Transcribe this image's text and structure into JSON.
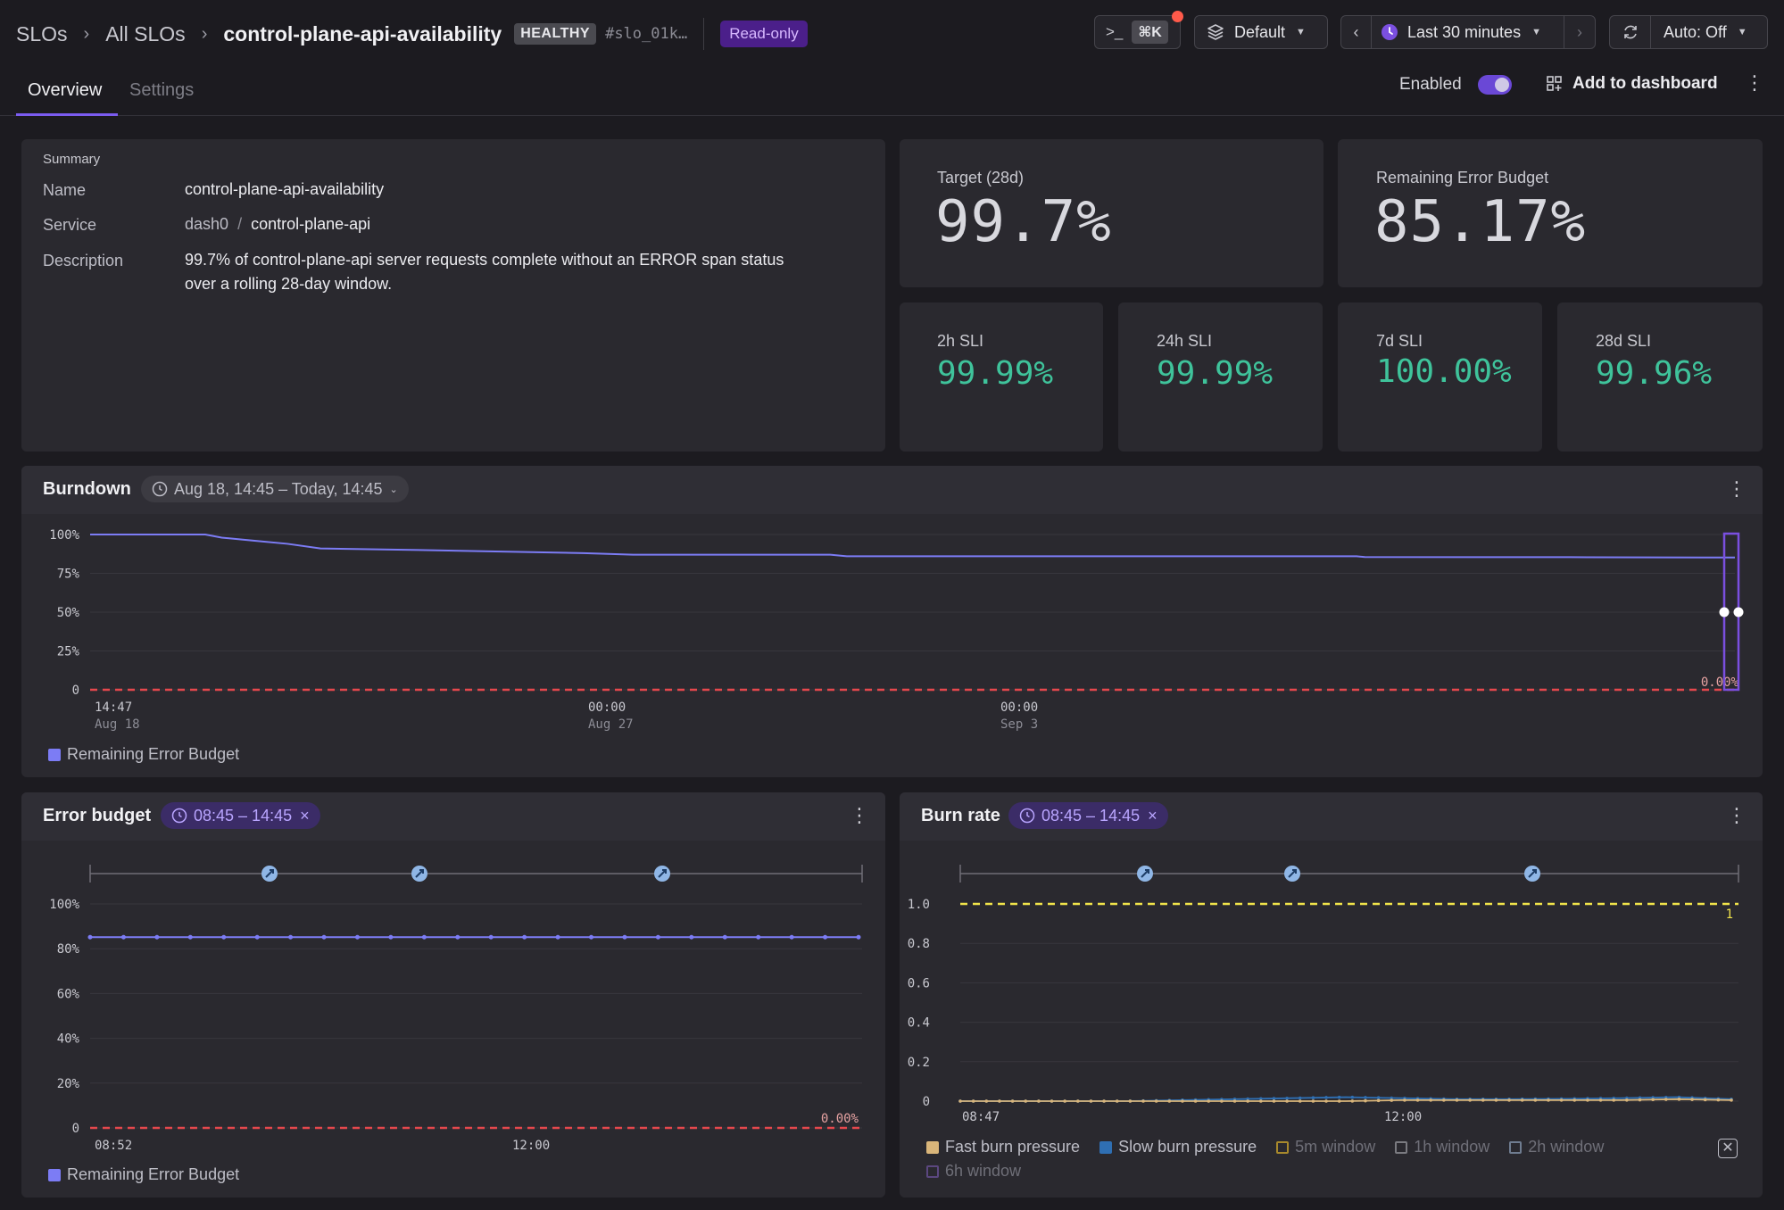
{
  "header": {
    "breadcrumb": [
      "SLOs",
      "All SLOs",
      "control-plane-api-availability"
    ],
    "status_badge": "HEALTHY",
    "slo_id": "#slo_01k…",
    "readonly": "Read-only",
    "command_key": "⌘K",
    "dataset": "Default",
    "time_range": "Last 30 minutes",
    "refresh": "Auto: Off"
  },
  "tabs": [
    "Overview",
    "Settings"
  ],
  "toolbar": {
    "enabled_label": "Enabled",
    "enabled": true,
    "add_dashboard": "Add to dashboard"
  },
  "summary": {
    "heading": "Summary",
    "name_label": "Name",
    "name": "control-plane-api-availability",
    "service_label": "Service",
    "service_ns": "dash0",
    "service_sep": "/",
    "service": "control-plane-api",
    "description_label": "Description",
    "description_line1": "99.7% of control-plane-api server requests complete without an ERROR span status",
    "description_line2": "over a rolling 28-day window."
  },
  "stats": {
    "target_label": "Target (28d)",
    "target": "99.7%",
    "budget_label": "Remaining Error Budget",
    "budget": "85.17%",
    "sli": [
      {
        "label": "2h SLI",
        "value": "99.99%"
      },
      {
        "label": "24h SLI",
        "value": "99.99%"
      },
      {
        "label": "7d SLI",
        "value": "100.00%"
      },
      {
        "label": "28d SLI",
        "value": "99.96%"
      }
    ]
  },
  "burndown": {
    "title": "Burndown",
    "range": "Aug 18, 14:45 – Today, 14:45",
    "legend": "Remaining Error Budget",
    "end_label": "0.00%"
  },
  "error_budget": {
    "title": "Error budget",
    "range": "08:45 – 14:45",
    "legend": "Remaining Error Budget",
    "end_label": "0.00%"
  },
  "burn_rate": {
    "title": "Burn rate",
    "range": "08:45 – 14:45",
    "threshold_label": "1",
    "legend": [
      {
        "label": "Fast burn pressure",
        "color": "#d9b57a",
        "filled": true
      },
      {
        "label": "Slow burn pressure",
        "color": "#2f6fb3",
        "filled": true
      },
      {
        "label": "5m window",
        "color": "#a7882c",
        "filled": false
      },
      {
        "label": "1h window",
        "color": "#7a7a80",
        "filled": false
      },
      {
        "label": "2h window",
        "color": "#6f7c90",
        "filled": false
      },
      {
        "label": "6h window",
        "color": "#5b477f",
        "filled": false
      }
    ]
  },
  "chart_data": [
    {
      "type": "line",
      "name": "Burndown",
      "x_ticks": [
        {
          "line1": "14:47",
          "line2": "Aug 18"
        },
        {
          "line1": "00:00",
          "line2": "Aug 27"
        },
        {
          "line1": "00:00",
          "line2": "Sep 3"
        }
      ],
      "y_ticks": [
        "100%",
        "75%",
        "50%",
        "25%",
        "0"
      ],
      "ylim": [
        0,
        100
      ],
      "series": [
        {
          "name": "Remaining Error Budget",
          "color": "#7c7cf5",
          "x": [
            0,
            0.07,
            0.08,
            0.1,
            0.12,
            0.14,
            0.2,
            0.3,
            0.33,
            0.45,
            0.46,
            0.6,
            0.7,
            0.77,
            0.775,
            0.9,
            1.0
          ],
          "values": [
            100,
            100,
            98,
            96,
            94,
            91,
            90,
            88,
            87,
            87,
            86,
            86,
            86,
            86,
            85.5,
            85.4,
            85.17
          ]
        }
      ],
      "target_line": 0,
      "end_label": "0.00%"
    },
    {
      "type": "line",
      "name": "Error budget",
      "x_ticks": [
        "08:52",
        "12:00"
      ],
      "y_ticks": [
        "100%",
        "80%",
        "60%",
        "40%",
        "20%",
        "0"
      ],
      "ylim": [
        0,
        100
      ],
      "series": [
        {
          "name": "Remaining Error Budget",
          "color": "#7c7cf5",
          "constant": 85.17,
          "points": 24
        }
      ],
      "target_line": 0,
      "end_label": "0.00%",
      "event_markers": 3
    },
    {
      "type": "line",
      "name": "Burn rate",
      "x_ticks": [
        "08:47",
        "12:00"
      ],
      "y_ticks": [
        "1.0",
        "0.8",
        "0.6",
        "0.4",
        "0.2",
        "0"
      ],
      "ylim": [
        0,
        1.0
      ],
      "threshold": 1.0,
      "series": [
        {
          "name": "Slow burn pressure",
          "color": "#2f6fb3",
          "values": [
            0,
            0,
            0,
            0,
            0.005,
            0.01,
            0.015,
            0.02,
            0.015,
            0.01,
            0.01,
            0.012,
            0.015,
            0.02,
            0.01
          ]
        },
        {
          "name": "Fast burn pressure",
          "color": "#d9b57a",
          "values": [
            0,
            0,
            0,
            0,
            0,
            0,
            0,
            0,
            0.005,
            0.005,
            0.005,
            0.005,
            0.005,
            0.01,
            0.005
          ]
        }
      ],
      "event_markers": 3
    }
  ]
}
